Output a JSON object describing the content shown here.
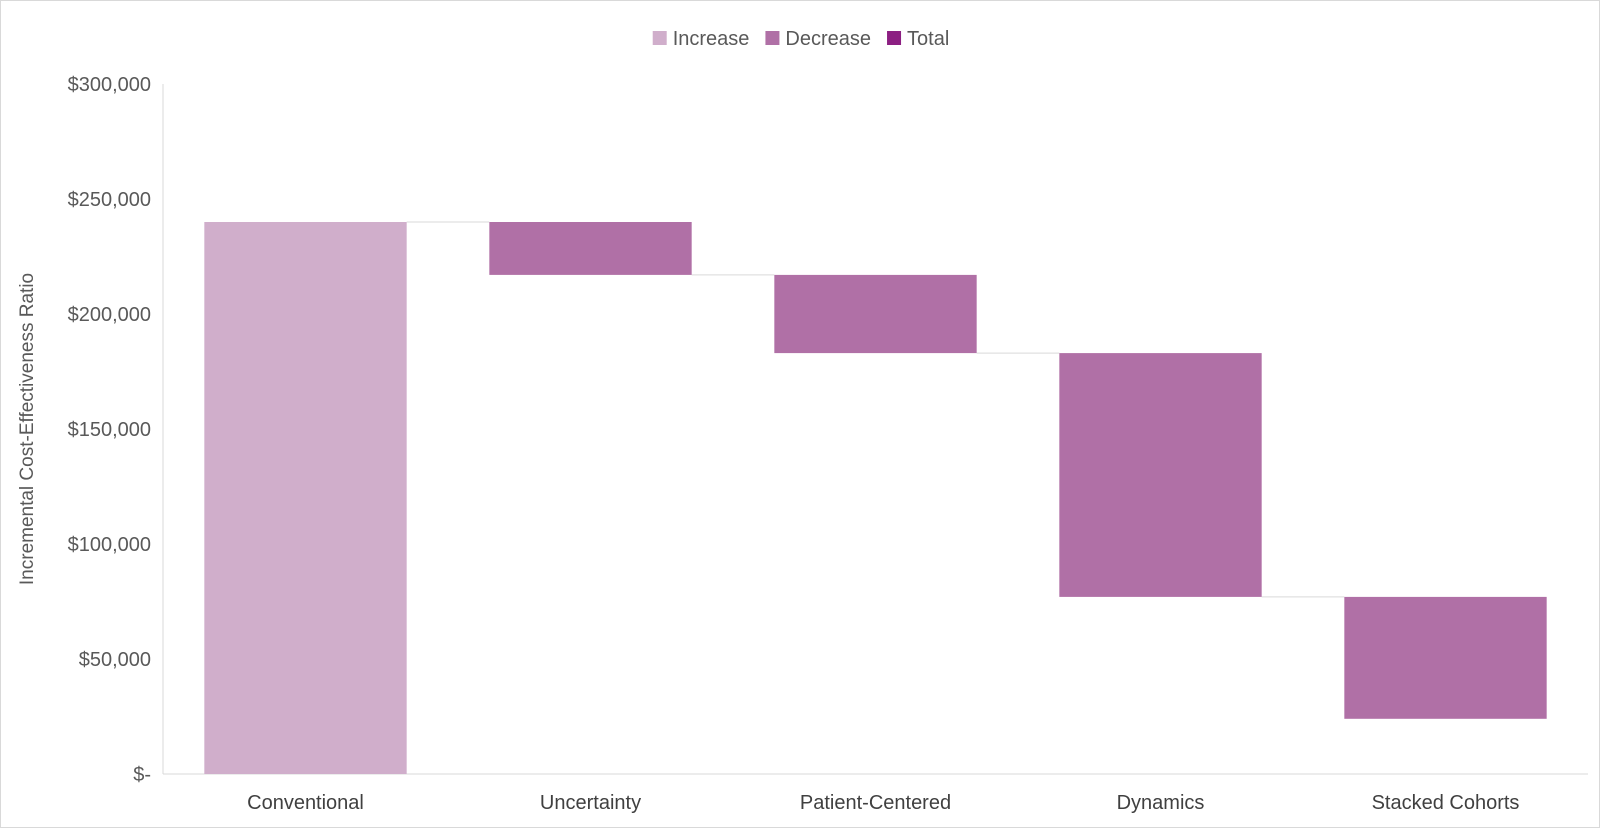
{
  "chart_data": {
    "type": "bar",
    "subtype": "waterfall",
    "title": "",
    "xlabel": "",
    "ylabel": "Incremental Cost-Effectiveness Ratio",
    "ylim": [
      0,
      300000
    ],
    "y_ticks": [
      0,
      50000,
      100000,
      150000,
      200000,
      250000,
      300000
    ],
    "y_tick_labels": [
      "$-",
      "$50,000",
      "$100,000",
      "$150,000",
      "$200,000",
      "$250,000",
      "$300,000"
    ],
    "categories": [
      "Conventional",
      "Uncertainty",
      "Patient-Centered",
      "Dynamics",
      "Stacked Cohorts"
    ],
    "bars": [
      {
        "category": "Conventional",
        "kind": "Increase",
        "start": 0,
        "end": 240000
      },
      {
        "category": "Uncertainty",
        "kind": "Decrease",
        "start": 240000,
        "end": 217000
      },
      {
        "category": "Patient-Centered",
        "kind": "Decrease",
        "start": 217000,
        "end": 183000
      },
      {
        "category": "Dynamics",
        "kind": "Decrease",
        "start": 183000,
        "end": 77000
      },
      {
        "category": "Stacked Cohorts",
        "kind": "Decrease",
        "start": 77000,
        "end": 24000
      }
    ],
    "legend": {
      "position": "top-center",
      "items": [
        {
          "name": "Increase",
          "color": "#d0aecb"
        },
        {
          "name": "Decrease",
          "color": "#b070a6"
        },
        {
          "name": "Total",
          "color": "#8c1f82"
        }
      ]
    },
    "grid": false
  }
}
